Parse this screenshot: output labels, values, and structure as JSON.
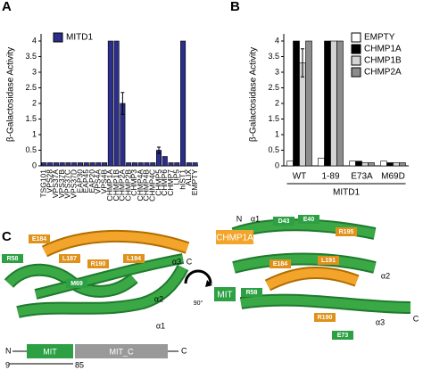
{
  "chart_data": [
    {
      "type": "bar",
      "panel_label": "A",
      "ylabel": "β-Galactosidase Activity",
      "categories": [
        "TSG101",
        "VPS28",
        "VPS37A",
        "VPS37B",
        "VPS37C",
        "VPS37D",
        "EAP30",
        "EAP45",
        "EAP20",
        "VPS4A",
        "VPS4B",
        "CHMP1A",
        "CHMP1B",
        "CHMP2A",
        "CHMP2B",
        "CHMP3",
        "CHMP4A",
        "CHMP4B",
        "CHMP4C",
        "CHMP5",
        "CHMP6",
        "CHMP7",
        "LIP5",
        "hIST1",
        "ALIX",
        "EMPTY"
      ],
      "series": [
        {
          "name": "MITD1",
          "color": "#2b2e8c",
          "values": [
            0.1,
            0.1,
            0.1,
            0.1,
            0.1,
            0.1,
            0.1,
            0.1,
            0.1,
            0.1,
            0.1,
            4.0,
            4.0,
            2.0,
            0.1,
            0.1,
            0.1,
            0.1,
            0.1,
            0.5,
            0.3,
            0.1,
            0.1,
            4.0,
            0.1,
            0.1
          ],
          "errors": [
            null,
            null,
            null,
            null,
            null,
            null,
            null,
            null,
            null,
            null,
            null,
            null,
            null,
            0.35,
            null,
            null,
            null,
            null,
            null,
            0.1,
            null,
            null,
            null,
            null,
            null,
            null
          ]
        }
      ],
      "ylim": [
        0,
        4
      ],
      "yticks": [
        0,
        0.5,
        1,
        1.5,
        2,
        2.5,
        3,
        3.5,
        4
      ],
      "legend": "upper left"
    },
    {
      "type": "bar",
      "panel_label": "B",
      "ylabel": "β-Galactosidase Activity",
      "xlabel": "MITD1",
      "categories": [
        "WT",
        "1-89",
        "E73A",
        "M69D"
      ],
      "series": [
        {
          "name": "EMPTY",
          "color": "#ffffff",
          "values": [
            0.15,
            0.25,
            0.15,
            0.15
          ],
          "errors": [
            null,
            null,
            null,
            null
          ]
        },
        {
          "name": "CHMP1A",
          "color": "#000000",
          "values": [
            4.0,
            4.0,
            0.15,
            0.1
          ],
          "errors": [
            null,
            null,
            null,
            null
          ]
        },
        {
          "name": "CHMP1B",
          "color": "#d4d4d4",
          "values": [
            3.3,
            4.0,
            0.1,
            0.1
          ],
          "errors": [
            0.45,
            null,
            null,
            null
          ]
        },
        {
          "name": "CHMP2A",
          "color": "#8c8c8c",
          "values": [
            4.0,
            4.0,
            0.1,
            0.1
          ],
          "errors": [
            null,
            null,
            null,
            null
          ]
        }
      ],
      "ylim": [
        0,
        4
      ],
      "yticks": [
        0,
        0.5,
        1,
        1.5,
        2,
        2.5,
        3,
        3.5,
        4
      ],
      "legend": "upper right"
    }
  ],
  "structure": {
    "panel_label": "C",
    "left_labels": [
      "E184",
      "L187",
      "R190",
      "L194",
      "R58",
      "M69",
      "α3",
      "C",
      "α2",
      "α1"
    ],
    "chmp_label": "CHMP1A",
    "mit_label": "MIT",
    "rotation": "90°",
    "right_labels": [
      "N",
      "α1",
      "D43",
      "E40",
      "R195",
      "L191",
      "E184",
      "R58",
      "α2",
      "R190",
      "E73",
      "α3",
      "C"
    ],
    "domain": {
      "n": "N",
      "mit": "MIT",
      "mitc": "MIT_C",
      "c": "C",
      "start": "9",
      "end": "85"
    }
  }
}
